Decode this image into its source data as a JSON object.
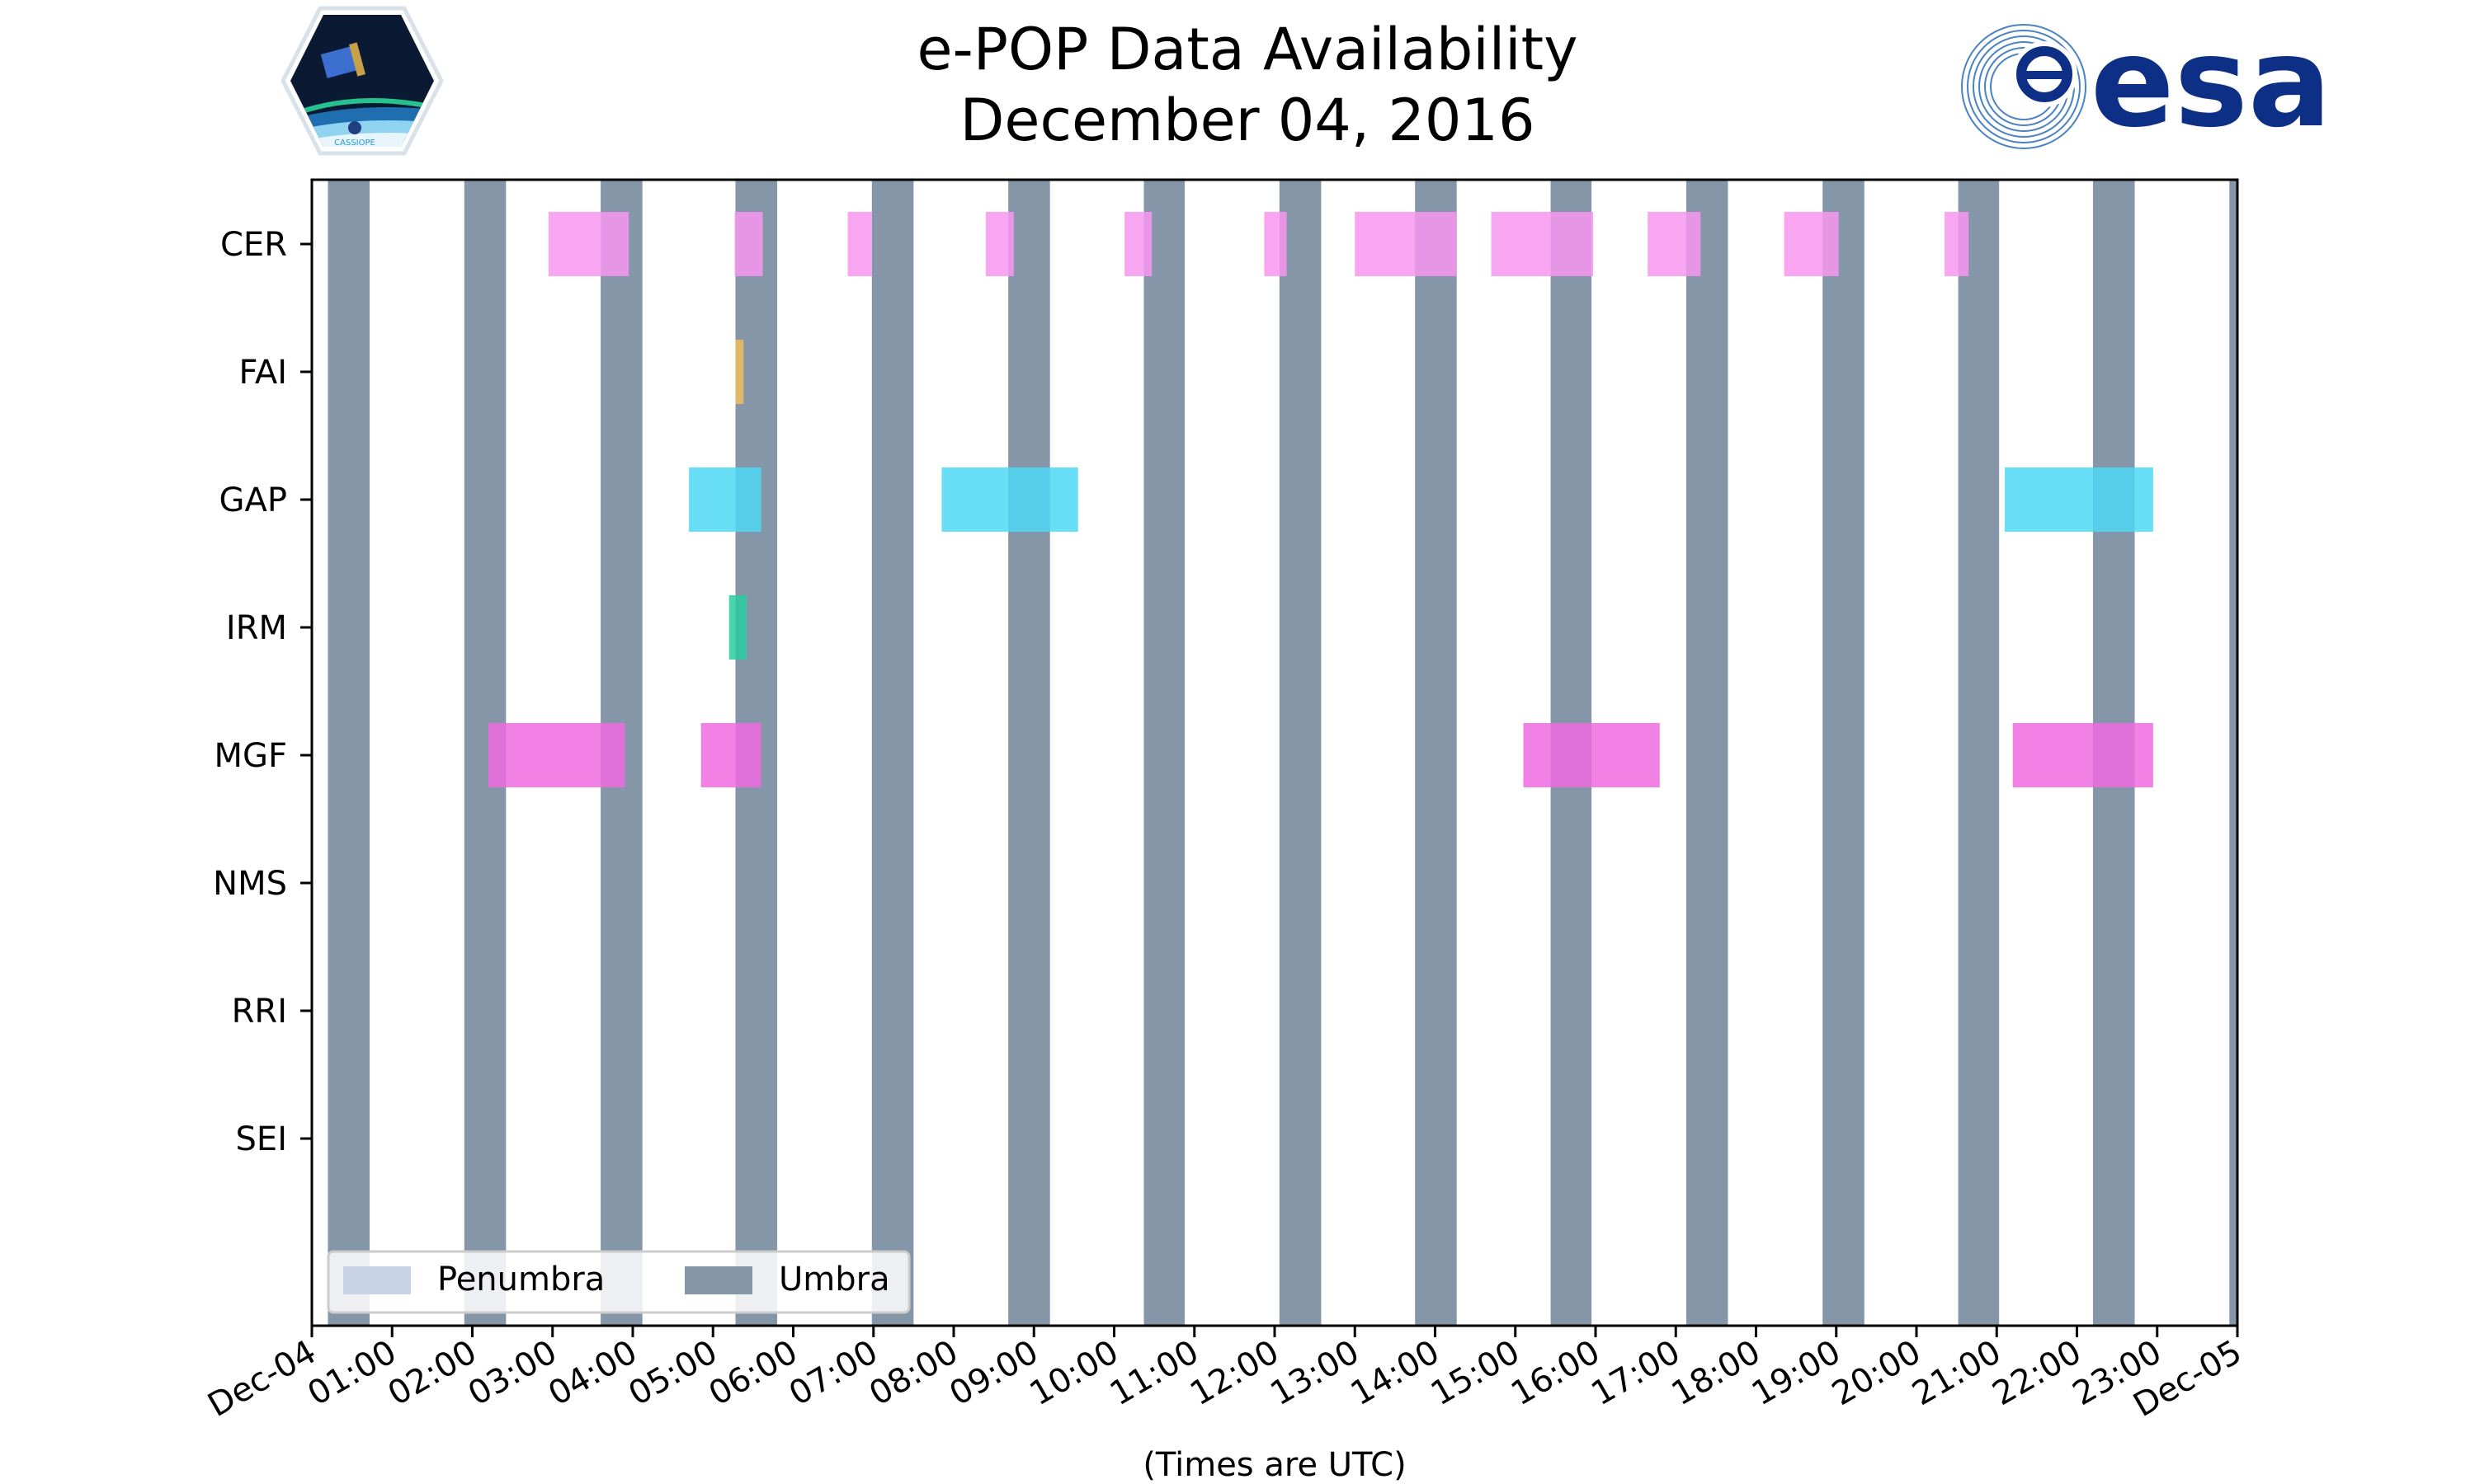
{
  "chart_data": {
    "type": "timeline",
    "title": "e-POP Data Availability",
    "subtitle": "December 04, 2016",
    "xlabel": "(Times are UTC)",
    "ylabel": "",
    "x_unit": "hours UTC",
    "xlim": [
      0,
      24
    ],
    "x_tick_labels": [
      "Dec-04",
      "01:00",
      "02:00",
      "03:00",
      "04:00",
      "05:00",
      "06:00",
      "07:00",
      "08:00",
      "09:00",
      "10:00",
      "11:00",
      "12:00",
      "13:00",
      "14:00",
      "15:00",
      "16:00",
      "17:00",
      "18:00",
      "19:00",
      "20:00",
      "21:00",
      "22:00",
      "23:00",
      "Dec-05"
    ],
    "x_tick_values": [
      0,
      1,
      2,
      3,
      4,
      5,
      6,
      7,
      8,
      9,
      10,
      11,
      12,
      13,
      14,
      15,
      16,
      17,
      18,
      19,
      20,
      21,
      22,
      23,
      24
    ],
    "categories": [
      "CER",
      "FAI",
      "GAP",
      "IRM",
      "MGF",
      "NMS",
      "RRI",
      "SEI"
    ],
    "legend": {
      "placement": "lower-left",
      "entries": [
        {
          "label": "Penumbra",
          "color": "#c8d4e6"
        },
        {
          "label": "Umbra",
          "color": "#8496a8"
        }
      ]
    },
    "umbra_intervals": [
      [
        0.2,
        0.72
      ],
      [
        1.9,
        2.42
      ],
      [
        3.6,
        4.12
      ],
      [
        5.28,
        5.8
      ],
      [
        6.98,
        7.5
      ],
      [
        8.68,
        9.2
      ],
      [
        10.37,
        10.88
      ],
      [
        12.06,
        12.58
      ],
      [
        13.75,
        14.27
      ],
      [
        15.44,
        15.95
      ],
      [
        17.13,
        17.65
      ],
      [
        18.83,
        19.35
      ],
      [
        20.52,
        21.03
      ],
      [
        22.2,
        22.72
      ],
      [
        23.9,
        24.0
      ]
    ],
    "series": [
      {
        "name": "CER",
        "color": "#f797ee",
        "intervals": [
          [
            2.95,
            3.95
          ],
          [
            5.27,
            5.62
          ],
          [
            6.68,
            6.98
          ],
          [
            8.4,
            8.75
          ],
          [
            10.13,
            10.47
          ],
          [
            11.87,
            12.15
          ],
          [
            13.0,
            14.27
          ],
          [
            14.7,
            15.97
          ],
          [
            16.65,
            17.31
          ],
          [
            18.35,
            19.03
          ],
          [
            20.35,
            20.65
          ]
        ]
      },
      {
        "name": "FAI",
        "color": "#f0bd5e",
        "intervals": [
          [
            5.28,
            5.38
          ]
        ]
      },
      {
        "name": "GAP",
        "color": "#4ed8f6",
        "intervals": [
          [
            4.7,
            5.6
          ],
          [
            7.85,
            9.55
          ],
          [
            21.1,
            22.95
          ]
        ]
      },
      {
        "name": "IRM",
        "color": "#2acba0",
        "intervals": [
          [
            5.2,
            5.42
          ]
        ]
      },
      {
        "name": "MGF",
        "color": "#ee6be0",
        "intervals": [
          [
            2.2,
            3.9
          ],
          [
            4.85,
            5.6
          ],
          [
            15.1,
            16.8
          ],
          [
            21.2,
            22.95
          ]
        ]
      },
      {
        "name": "NMS",
        "color": "#f797ee",
        "intervals": []
      },
      {
        "name": "RRI",
        "color": "#f797ee",
        "intervals": []
      },
      {
        "name": "SEI",
        "color": "#f797ee",
        "intervals": []
      }
    ],
    "grid": false
  },
  "logos": {
    "left": {
      "icon": "cassiope-mission-logo",
      "text": "CASSIOPE"
    },
    "right": {
      "icon": "esa-logo",
      "text": "esa"
    }
  }
}
